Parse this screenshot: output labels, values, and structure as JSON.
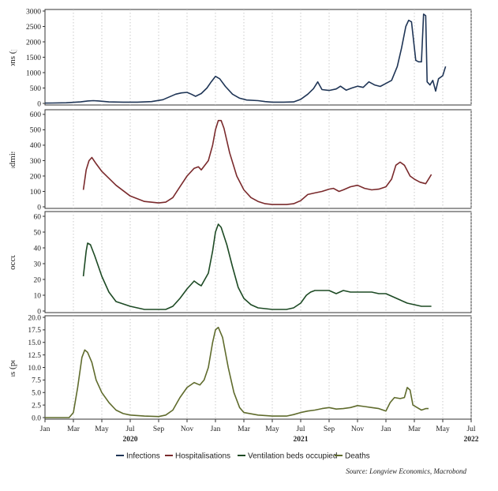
{
  "chart_data": {
    "type": "line",
    "legend_position": "bottom",
    "grid": "vertical dotted",
    "source": "Source: Longview Economics, Macrobond",
    "x_months": [
      "Jan",
      "Mar",
      "May",
      "Jul",
      "Sep",
      "Nov",
      "Jan",
      "Mar",
      "May",
      "Jul",
      "Sep",
      "Nov",
      "Jan",
      "Mar",
      "May",
      "Jul"
    ],
    "x_years": [
      "2020",
      "2021",
      "2022"
    ],
    "panels": [
      {
        "ylabel": "Infections (per mn)",
        "ylim": [
          0,
          3000
        ],
        "yticks": [
          "0",
          "500",
          "1000",
          "1500",
          "2000",
          "2500",
          "3000"
        ],
        "series": {
          "name": "Infections",
          "color": "#1f3556",
          "points": [
            [
              0,
              10
            ],
            [
              0.5,
              12
            ],
            [
              1.5,
              20
            ],
            [
              2.5,
              50
            ],
            [
              3.0,
              80
            ],
            [
              3.4,
              90
            ],
            [
              3.8,
              80
            ],
            [
              4.5,
              50
            ],
            [
              5.5,
              40
            ],
            [
              6.5,
              40
            ],
            [
              7.5,
              60
            ],
            [
              8.3,
              120
            ],
            [
              8.7,
              200
            ],
            [
              9.2,
              300
            ],
            [
              9.6,
              340
            ],
            [
              10.0,
              360
            ],
            [
              10.3,
              300
            ],
            [
              10.6,
              230
            ],
            [
              11.0,
              320
            ],
            [
              11.4,
              500
            ],
            [
              11.7,
              700
            ],
            [
              12.0,
              880
            ],
            [
              12.3,
              800
            ],
            [
              12.7,
              550
            ],
            [
              13.2,
              300
            ],
            [
              13.7,
              170
            ],
            [
              14.2,
              110
            ],
            [
              15.0,
              90
            ],
            [
              15.5,
              60
            ],
            [
              16.0,
              40
            ],
            [
              16.8,
              40
            ],
            [
              17.5,
              50
            ],
            [
              18.0,
              130
            ],
            [
              18.5,
              300
            ],
            [
              18.9,
              480
            ],
            [
              19.2,
              700
            ],
            [
              19.5,
              450
            ],
            [
              20.0,
              420
            ],
            [
              20.5,
              470
            ],
            [
              20.8,
              560
            ],
            [
              21.2,
              430
            ],
            [
              21.6,
              500
            ],
            [
              22.0,
              560
            ],
            [
              22.4,
              520
            ],
            [
              22.8,
              700
            ],
            [
              23.2,
              600
            ],
            [
              23.6,
              550
            ],
            [
              24.0,
              650
            ],
            [
              24.4,
              750
            ],
            [
              24.8,
              1200
            ],
            [
              25.1,
              1800
            ],
            [
              25.4,
              2500
            ],
            [
              25.6,
              2700
            ],
            [
              25.8,
              2650
            ],
            [
              26.1,
              1400
            ],
            [
              26.3,
              1350
            ],
            [
              26.5,
              1350
            ],
            [
              26.65,
              2900
            ],
            [
              26.8,
              2850
            ],
            [
              26.9,
              700
            ],
            [
              27.1,
              600
            ],
            [
              27.3,
              750
            ],
            [
              27.5,
              400
            ],
            [
              27.7,
              800
            ],
            [
              28.0,
              900
            ],
            [
              28.2,
              1200
            ]
          ]
        }
      },
      {
        "ylabel": "Hospital admissions (per",
        "ylim": [
          0,
          620
        ],
        "yticks": [
          "0",
          "100",
          "200",
          "300",
          "400",
          "500",
          "600"
        ],
        "series": {
          "name": "Hospitalisations",
          "color": "#7a2a2c",
          "points": [
            [
              2.7,
              110
            ],
            [
              2.9,
              240
            ],
            [
              3.1,
              300
            ],
            [
              3.3,
              320
            ],
            [
              3.6,
              280
            ],
            [
              4.0,
              230
            ],
            [
              5.0,
              140
            ],
            [
              6.0,
              70
            ],
            [
              7.0,
              35
            ],
            [
              8.0,
              25
            ],
            [
              8.5,
              30
            ],
            [
              9.0,
              60
            ],
            [
              9.5,
              130
            ],
            [
              10.0,
              200
            ],
            [
              10.5,
              250
            ],
            [
              10.8,
              260
            ],
            [
              11.0,
              240
            ],
            [
              11.5,
              300
            ],
            [
              11.8,
              400
            ],
            [
              12.0,
              500
            ],
            [
              12.2,
              560
            ],
            [
              12.4,
              560
            ],
            [
              12.6,
              510
            ],
            [
              13.0,
              350
            ],
            [
              13.5,
              200
            ],
            [
              14.0,
              110
            ],
            [
              14.5,
              60
            ],
            [
              15.0,
              35
            ],
            [
              15.5,
              20
            ],
            [
              16.0,
              15
            ],
            [
              17.0,
              15
            ],
            [
              17.5,
              20
            ],
            [
              18.0,
              40
            ],
            [
              18.5,
              80
            ],
            [
              19.0,
              90
            ],
            [
              19.5,
              100
            ],
            [
              20.0,
              115
            ],
            [
              20.3,
              120
            ],
            [
              20.7,
              100
            ],
            [
              21.0,
              110
            ],
            [
              21.5,
              130
            ],
            [
              22.0,
              140
            ],
            [
              22.5,
              120
            ],
            [
              23.0,
              110
            ],
            [
              23.5,
              115
            ],
            [
              24.0,
              130
            ],
            [
              24.4,
              180
            ],
            [
              24.7,
              270
            ],
            [
              25.0,
              290
            ],
            [
              25.3,
              270
            ],
            [
              25.7,
              200
            ],
            [
              26.0,
              180
            ],
            [
              26.4,
              160
            ],
            [
              26.8,
              150
            ],
            [
              27.0,
              180
            ],
            [
              27.2,
              210
            ]
          ]
        }
      },
      {
        "ylabel": "Vent. beds occupied (per n",
        "ylim": [
          0,
          62
        ],
        "yticks": [
          "0",
          "10",
          "20",
          "30",
          "40",
          "50",
          "60"
        ],
        "series": {
          "name": "Ventilation beds occupied",
          "color": "#1d4a24",
          "points": [
            [
              2.7,
              22
            ],
            [
              2.9,
              38
            ],
            [
              3.0,
              43
            ],
            [
              3.2,
              42
            ],
            [
              3.5,
              35
            ],
            [
              4.0,
              22
            ],
            [
              4.5,
              12
            ],
            [
              5.0,
              6
            ],
            [
              6.0,
              3
            ],
            [
              7.0,
              1
            ],
            [
              8.0,
              1
            ],
            [
              8.5,
              1
            ],
            [
              9.0,
              3
            ],
            [
              9.5,
              8
            ],
            [
              10.0,
              14
            ],
            [
              10.5,
              19
            ],
            [
              10.8,
              17
            ],
            [
              11.0,
              16
            ],
            [
              11.5,
              24
            ],
            [
              11.8,
              38
            ],
            [
              12.0,
              50
            ],
            [
              12.2,
              55
            ],
            [
              12.4,
              53
            ],
            [
              12.8,
              42
            ],
            [
              13.2,
              28
            ],
            [
              13.6,
              15
            ],
            [
              14.0,
              8
            ],
            [
              14.5,
              4
            ],
            [
              15.0,
              2
            ],
            [
              16.0,
              1
            ],
            [
              17.0,
              1
            ],
            [
              17.5,
              2
            ],
            [
              18.0,
              5
            ],
            [
              18.4,
              10
            ],
            [
              18.7,
              12
            ],
            [
              19.0,
              13
            ],
            [
              19.5,
              13
            ],
            [
              20.0,
              13
            ],
            [
              20.5,
              11
            ],
            [
              21.0,
              13
            ],
            [
              21.5,
              12
            ],
            [
              22.0,
              12
            ],
            [
              22.5,
              12
            ],
            [
              23.0,
              12
            ],
            [
              23.5,
              11
            ],
            [
              24.0,
              11
            ],
            [
              24.5,
              9
            ],
            [
              25.0,
              7
            ],
            [
              25.5,
              5
            ],
            [
              26.0,
              4
            ],
            [
              26.5,
              3
            ],
            [
              27.0,
              3
            ],
            [
              27.2,
              3
            ]
          ]
        }
      },
      {
        "ylabel": "Deaths (per mn)",
        "ylim": [
          0,
          20
        ],
        "yticks": [
          "0.0",
          "2.5",
          "5.0",
          "7.5",
          "10.0",
          "12.5",
          "15.0",
          "17.5",
          "20.0"
        ],
        "series": {
          "name": "Deaths",
          "color": "#5f6b2c",
          "points": [
            [
              0,
              0
            ],
            [
              1.0,
              0
            ],
            [
              1.7,
              0
            ],
            [
              2.0,
              1
            ],
            [
              2.3,
              6
            ],
            [
              2.6,
              12
            ],
            [
              2.8,
              13.5
            ],
            [
              3.0,
              13
            ],
            [
              3.3,
              11
            ],
            [
              3.6,
              7.5
            ],
            [
              4.0,
              5
            ],
            [
              4.5,
              3
            ],
            [
              5.0,
              1.5
            ],
            [
              5.5,
              0.8
            ],
            [
              6.0,
              0.5
            ],
            [
              7.0,
              0.3
            ],
            [
              8.0,
              0.2
            ],
            [
              8.5,
              0.5
            ],
            [
              9.0,
              1.5
            ],
            [
              9.5,
              4
            ],
            [
              10.0,
              6
            ],
            [
              10.5,
              7
            ],
            [
              10.9,
              6.5
            ],
            [
              11.2,
              7.5
            ],
            [
              11.5,
              10
            ],
            [
              11.8,
              15
            ],
            [
              12.0,
              17.5
            ],
            [
              12.2,
              18
            ],
            [
              12.5,
              16
            ],
            [
              12.9,
              10
            ],
            [
              13.3,
              5
            ],
            [
              13.7,
              2
            ],
            [
              14.0,
              1
            ],
            [
              15.0,
              0.5
            ],
            [
              16.0,
              0.3
            ],
            [
              17.0,
              0.3
            ],
            [
              17.5,
              0.6
            ],
            [
              18.0,
              1
            ],
            [
              18.5,
              1.3
            ],
            [
              19.0,
              1.5
            ],
            [
              19.5,
              1.8
            ],
            [
              20.0,
              2
            ],
            [
              20.5,
              1.7
            ],
            [
              21.0,
              1.8
            ],
            [
              21.5,
              2
            ],
            [
              22.0,
              2.4
            ],
            [
              22.5,
              2.2
            ],
            [
              23.0,
              2
            ],
            [
              23.5,
              1.8
            ],
            [
              24.0,
              1.3
            ],
            [
              24.3,
              3
            ],
            [
              24.6,
              4
            ],
            [
              25.0,
              3.8
            ],
            [
              25.3,
              4
            ],
            [
              25.5,
              6
            ],
            [
              25.7,
              5.5
            ],
            [
              25.9,
              2.5
            ],
            [
              26.2,
              2
            ],
            [
              26.5,
              1.5
            ],
            [
              26.8,
              1.8
            ],
            [
              27.0,
              1.8
            ]
          ]
        }
      }
    ]
  }
}
